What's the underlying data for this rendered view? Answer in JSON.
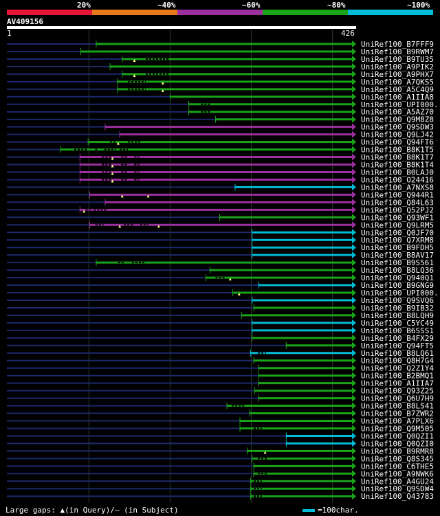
{
  "header": {
    "scale_labels": [
      "20%",
      "~40%",
      "~60%",
      "~80%",
      "~100%"
    ],
    "scale_colors": [
      "#e8153a",
      "#e87a1e",
      "#9b309e",
      "#1aa41a",
      "#00bcd4"
    ],
    "query_id": "AV409156",
    "ruler_start": "1",
    "ruler_end": "426"
  },
  "colors": {
    "background": "#000000",
    "query_line": "#1c2a6e",
    "grid": "#2e3d2e",
    "gap_query": "#ffff88"
  },
  "hits": [
    {
      "label": "UniRef100_B7FFF9",
      "start": 111,
      "end": 426,
      "color": "green",
      "gaps": [],
      "qgaps": []
    },
    {
      "label": "UniRef100_B9RWM7",
      "start": 92,
      "end": 426,
      "color": "green",
      "gaps": [],
      "qgaps": []
    },
    {
      "label": "UniRef100_B9TU35",
      "start": 143,
      "end": 426,
      "color": "green",
      "gaps": [
        [
          172,
          200
        ]
      ],
      "qgaps": [
        158
      ]
    },
    {
      "label": "UniRef100_A9PIK2",
      "start": 128,
      "end": 426,
      "color": "green",
      "gaps": [],
      "qgaps": []
    },
    {
      "label": "UniRef100_A9PHX7",
      "start": 143,
      "end": 426,
      "color": "green",
      "gaps": [
        [
          172,
          200
        ]
      ],
      "qgaps": [
        158
      ]
    },
    {
      "label": "UniRef100_A7QKS5",
      "start": 137,
      "end": 426,
      "color": "green",
      "gaps": [
        [
          150,
          172
        ]
      ],
      "qgaps": [
        193
      ]
    },
    {
      "label": "UniRef100_A5C4Q9",
      "start": 137,
      "end": 426,
      "color": "green",
      "gaps": [
        [
          150,
          172
        ]
      ],
      "qgaps": [
        193
      ]
    },
    {
      "label": "UniRef100_A1IIA8",
      "start": 202,
      "end": 426,
      "color": "green",
      "gaps": [],
      "qgaps": []
    },
    {
      "label": "UniRef100_UPI000..",
      "start": 225,
      "end": 426,
      "color": "green",
      "gaps": [
        [
          240,
          252
        ]
      ],
      "qgaps": []
    },
    {
      "label": "UniRef100_A5AZ70",
      "start": 225,
      "end": 426,
      "color": "green",
      "gaps": [
        [
          240,
          252
        ]
      ],
      "qgaps": []
    },
    {
      "label": "UniRef100_Q9M8Z8",
      "start": 258,
      "end": 426,
      "color": "green",
      "gaps": [],
      "qgaps": []
    },
    {
      "label": "UniRef100_Q9SDW3",
      "start": 122,
      "end": 426,
      "color": "purple",
      "gaps": [],
      "qgaps": []
    },
    {
      "label": "UniRef100_Q9LJ42",
      "start": 140,
      "end": 426,
      "color": "purple",
      "gaps": [],
      "qgaps": []
    },
    {
      "label": "UniRef100_Q94FT6",
      "start": 101,
      "end": 426,
      "color": "green",
      "gaps": [
        [
          128,
          135
        ],
        [
          150,
          166
        ]
      ],
      "qgaps": [
        138
      ]
    },
    {
      "label": "UniRef100_B8K1T5",
      "start": 67,
      "end": 426,
      "color": "green",
      "gaps": [
        [
          84,
          100
        ],
        [
          110,
          112
        ],
        [
          121,
          135
        ],
        [
          140,
          150
        ]
      ],
      "qgaps": []
    },
    {
      "label": "UniRef100_B8K1T7",
      "start": 91,
      "end": 426,
      "color": "purple",
      "gaps": [
        [
          118,
          130
        ],
        [
          142,
          150
        ],
        [
          158,
          164
        ]
      ],
      "qgaps": [
        131
      ]
    },
    {
      "label": "UniRef100_B8K1T4",
      "start": 91,
      "end": 426,
      "color": "purple",
      "gaps": [
        [
          118,
          130
        ],
        [
          142,
          150
        ],
        [
          158,
          164
        ]
      ],
      "qgaps": [
        131
      ]
    },
    {
      "label": "UniRef100_B0LAJ0",
      "start": 91,
      "end": 426,
      "color": "purple",
      "gaps": [
        [
          118,
          130
        ],
        [
          142,
          150
        ],
        [
          158,
          164
        ]
      ],
      "qgaps": [
        131
      ]
    },
    {
      "label": "UniRef100_O24416",
      "start": 91,
      "end": 426,
      "color": "purple",
      "gaps": [
        [
          118,
          130
        ],
        [
          142,
          150
        ],
        [
          158,
          164
        ]
      ],
      "qgaps": [
        131
      ]
    },
    {
      "label": "UniRef100_A7NXS8",
      "start": 282,
      "end": 426,
      "color": "cyan",
      "gaps": [],
      "qgaps": []
    },
    {
      "label": "UniRef100_Q944R1",
      "start": 103,
      "end": 426,
      "color": "purple",
      "gaps": [],
      "qgaps": [
        143,
        175
      ]
    },
    {
      "label": "UniRef100_Q84L63",
      "start": 122,
      "end": 426,
      "color": "purple",
      "gaps": [],
      "qgaps": []
    },
    {
      "label": "UniRef100_Q52PJ2",
      "start": 91,
      "end": 426,
      "color": "purple",
      "gaps": [
        [
          98,
          104
        ],
        [
          108,
          125
        ]
      ],
      "qgaps": [
        96
      ]
    },
    {
      "label": "UniRef100_Q93WF1",
      "start": 263,
      "end": 426,
      "color": "green",
      "gaps": [],
      "qgaps": []
    },
    {
      "label": "UniRef100_Q9LRM5",
      "start": 103,
      "end": 426,
      "color": "purple",
      "gaps": [
        [
          110,
          120
        ],
        [
          145,
          158
        ],
        [
          165,
          175
        ]
      ],
      "qgaps": [
        140,
        188
      ]
    },
    {
      "label": "UniRef100_Q0JF70",
      "start": 303,
      "end": 426,
      "color": "cyan",
      "gaps": [],
      "qgaps": []
    },
    {
      "label": "UniRef100_Q7XRM8",
      "start": 303,
      "end": 426,
      "color": "cyan",
      "gaps": [],
      "qgaps": []
    },
    {
      "label": "UniRef100_B9FDH5",
      "start": 303,
      "end": 426,
      "color": "cyan",
      "gaps": [],
      "qgaps": []
    },
    {
      "label": "UniRef100_B8AV17",
      "start": 303,
      "end": 426,
      "color": "cyan",
      "gaps": [],
      "qgaps": []
    },
    {
      "label": "UniRef100_B9S561",
      "start": 111,
      "end": 426,
      "color": "green",
      "gaps": [
        [
          138,
          145
        ],
        [
          155,
          172
        ]
      ],
      "qgaps": []
    },
    {
      "label": "UniRef100_B8LQ36",
      "start": 251,
      "end": 426,
      "color": "green",
      "gaps": [],
      "qgaps": []
    },
    {
      "label": "UniRef100_Q940Q1",
      "start": 246,
      "end": 426,
      "color": "green",
      "gaps": [
        [
          258,
          270
        ]
      ],
      "qgaps": [
        276
      ]
    },
    {
      "label": "UniRef100_B9GNG9",
      "start": 311,
      "end": 426,
      "color": "cyan",
      "gaps": [],
      "qgaps": []
    },
    {
      "label": "UniRef100_UPI000..",
      "start": 279,
      "end": 426,
      "color": "green",
      "gaps": [],
      "qgaps": [
        287
      ]
    },
    {
      "label": "UniRef100_Q9SVQ6",
      "start": 303,
      "end": 426,
      "color": "cyan",
      "gaps": [],
      "qgaps": []
    },
    {
      "label": "UniRef100_B9IB32",
      "start": 305,
      "end": 426,
      "color": "green",
      "gaps": [],
      "qgaps": []
    },
    {
      "label": "UniRef100_B8LQH9",
      "start": 290,
      "end": 426,
      "color": "green",
      "gaps": [],
      "qgaps": []
    },
    {
      "label": "UniRef100_C5YC49",
      "start": 303,
      "end": 426,
      "color": "cyan",
      "gaps": [],
      "qgaps": []
    },
    {
      "label": "UniRef100_B6SSS1",
      "start": 303,
      "end": 426,
      "color": "cyan",
      "gaps": [],
      "qgaps": []
    },
    {
      "label": "UniRef100_B4FX29",
      "start": 303,
      "end": 426,
      "color": "green",
      "gaps": [],
      "qgaps": []
    },
    {
      "label": "UniRef100_Q94FT5",
      "start": 345,
      "end": 426,
      "color": "green",
      "gaps": [],
      "qgaps": []
    },
    {
      "label": "UniRef100_B8LQ61",
      "start": 301,
      "end": 426,
      "color": "cyan",
      "gaps": [
        [
          310,
          320
        ]
      ],
      "qgaps": []
    },
    {
      "label": "UniRef100_Q8H7G4",
      "start": 305,
      "end": 426,
      "color": "green",
      "gaps": [],
      "qgaps": []
    },
    {
      "label": "UniRef100_Q2Z1Y4",
      "start": 311,
      "end": 426,
      "color": "green",
      "gaps": [],
      "qgaps": []
    },
    {
      "label": "UniRef100_B2BMQ1",
      "start": 311,
      "end": 426,
      "color": "green",
      "gaps": [],
      "qgaps": []
    },
    {
      "label": "UniRef100_A1IIA7",
      "start": 311,
      "end": 426,
      "color": "green",
      "gaps": [],
      "qgaps": []
    },
    {
      "label": "UniRef100_Q93Z25",
      "start": 306,
      "end": 426,
      "color": "green",
      "gaps": [],
      "qgaps": []
    },
    {
      "label": "UniRef100_Q6U7H9",
      "start": 311,
      "end": 426,
      "color": "green",
      "gaps": [],
      "qgaps": []
    },
    {
      "label": "UniRef100_B8LS41",
      "start": 272,
      "end": 426,
      "color": "green",
      "gaps": [
        [
          278,
          295
        ]
      ],
      "qgaps": []
    },
    {
      "label": "UniRef100_B7ZWR2",
      "start": 300,
      "end": 426,
      "color": "green",
      "gaps": [],
      "qgaps": []
    },
    {
      "label": "UniRef100_A7PLX6",
      "start": 288,
      "end": 426,
      "color": "green",
      "gaps": [],
      "qgaps": []
    },
    {
      "label": "UniRef100_Q9M505",
      "start": 288,
      "end": 426,
      "color": "green",
      "gaps": [
        [
          305,
          315
        ]
      ],
      "qgaps": []
    },
    {
      "label": "UniRef100_Q0QZI1",
      "start": 345,
      "end": 426,
      "color": "cyan",
      "gaps": [],
      "qgaps": []
    },
    {
      "label": "UniRef100_Q0QZI0",
      "start": 345,
      "end": 426,
      "color": "cyan",
      "gaps": [],
      "qgaps": []
    },
    {
      "label": "UniRef100_B9RMR8",
      "start": 297,
      "end": 426,
      "color": "green",
      "gaps": [],
      "qgaps": [
        319
      ]
    },
    {
      "label": "UniRef100_Q8S345",
      "start": 303,
      "end": 426,
      "color": "green",
      "gaps": [
        [
          310,
          322
        ]
      ],
      "qgaps": []
    },
    {
      "label": "UniRef100_C6THE5",
      "start": 305,
      "end": 426,
      "color": "green",
      "gaps": [],
      "qgaps": []
    },
    {
      "label": "UniRef100_A9NWK6",
      "start": 305,
      "end": 426,
      "color": "green",
      "gaps": [
        [
          310,
          322
        ]
      ],
      "qgaps": []
    },
    {
      "label": "UniRef100_A4GU24",
      "start": 301,
      "end": 426,
      "color": "green",
      "gaps": [
        [
          305,
          315
        ]
      ],
      "qgaps": []
    },
    {
      "label": "UniRef100_Q9SDW4",
      "start": 301,
      "end": 426,
      "color": "green",
      "gaps": [
        [
          305,
          315
        ]
      ],
      "qgaps": []
    },
    {
      "label": "UniRef100_Q43783",
      "start": 301,
      "end": 426,
      "color": "green",
      "gaps": [
        [
          305,
          315
        ]
      ],
      "qgaps": []
    }
  ],
  "legend": {
    "gaps_text": "Large gaps: ▲(in Query)/– (in Subject)",
    "scale_text": "=100char."
  }
}
